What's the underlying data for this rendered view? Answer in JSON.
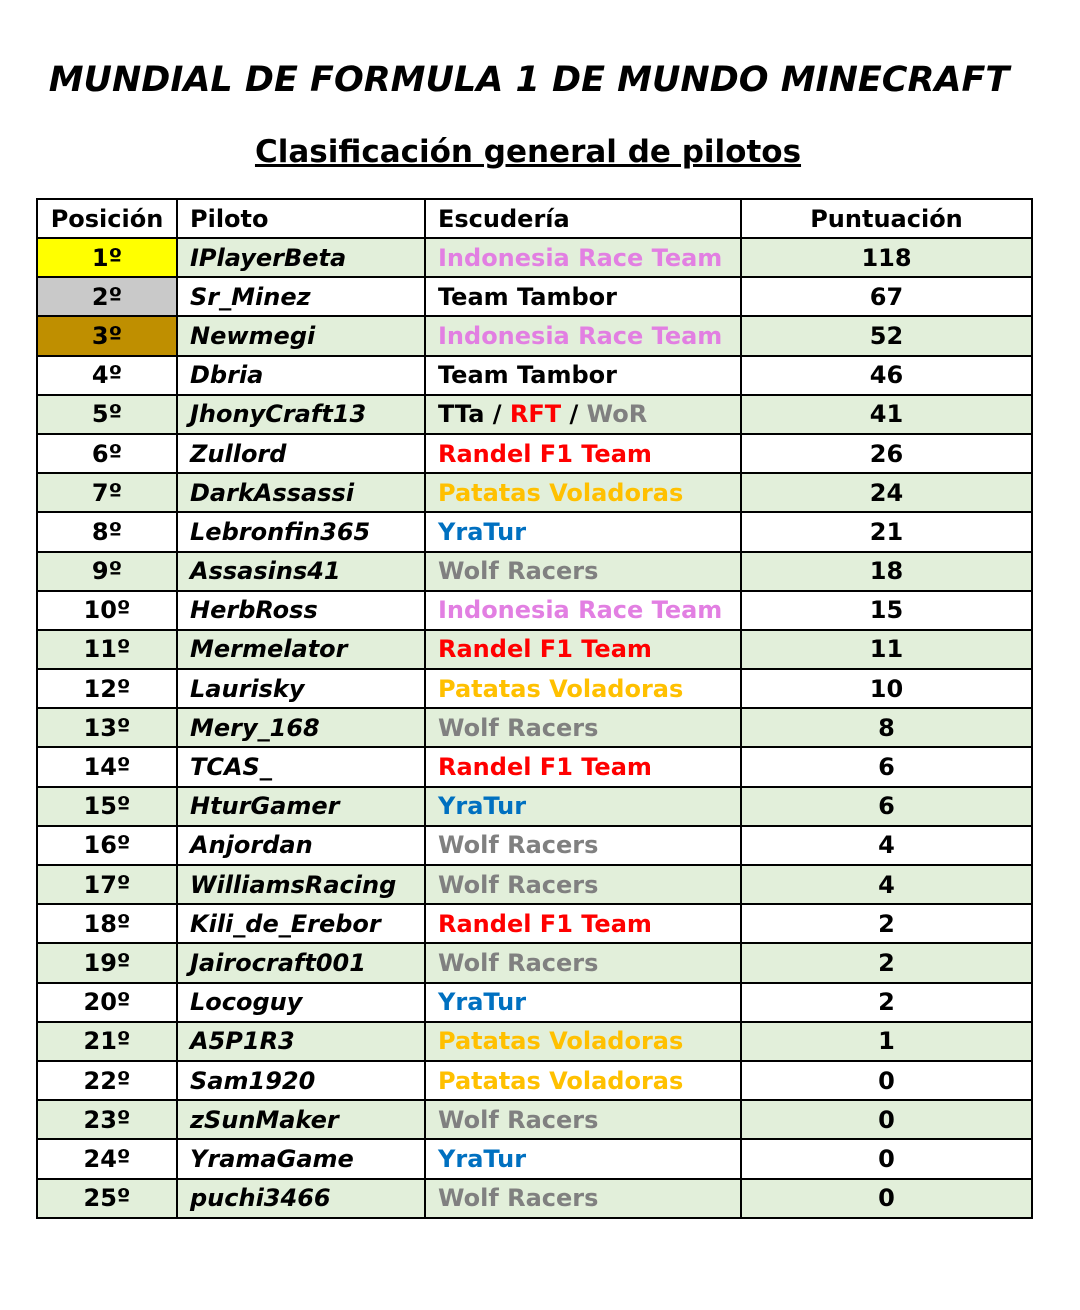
{
  "title": "MUNDIAL DE FORMULA 1 DE MUNDO MINECRAFT",
  "subtitle": "Clasificación general de pilotos",
  "colors": {
    "row_alt": "#e2efda",
    "gold": "#ffff00",
    "silver": "#c9c9c9",
    "bronze": "#bf8f00",
    "Indonesia Race Team": "#e27fe2",
    "Team Tambor": "#000000",
    "Randel F1 Team": "#ff0000",
    "Patatas Voladoras": "#ffc000",
    "YraTur": "#0070c0",
    "Wolf Racers": "#808080",
    "TTa": "#000000",
    "RFT": "#ff0000",
    "WoR": "#808080",
    "/": "#000000"
  },
  "headers": [
    "Posición",
    "Piloto",
    "Escudería",
    "Puntuación"
  ],
  "rows": [
    {
      "pos": "1º",
      "driver": "IPlayerBeta",
      "team": [
        "Indonesia Race Team"
      ],
      "points": "118"
    },
    {
      "pos": "2º",
      "driver": "Sr_Minez",
      "team": [
        "Team Tambor"
      ],
      "points": "67"
    },
    {
      "pos": "3º",
      "driver": "Newmegi",
      "team": [
        "Indonesia Race Team"
      ],
      "points": "52"
    },
    {
      "pos": "4º",
      "driver": "Dbria",
      "team": [
        "Team Tambor"
      ],
      "points": "46"
    },
    {
      "pos": "5º",
      "driver": "JhonyCraft13",
      "team": [
        "TTa",
        " / ",
        "RFT",
        " / ",
        "WoR"
      ],
      "points": "41"
    },
    {
      "pos": "6º",
      "driver": "Zullord",
      "team": [
        "Randel F1 Team"
      ],
      "points": "26"
    },
    {
      "pos": "7º",
      "driver": "DarkAssassi",
      "team": [
        "Patatas Voladoras"
      ],
      "points": "24"
    },
    {
      "pos": "8º",
      "driver": "Lebronfin365",
      "team": [
        "YraTur"
      ],
      "points": "21"
    },
    {
      "pos": "9º",
      "driver": "Assasins41",
      "team": [
        "Wolf Racers"
      ],
      "points": "18"
    },
    {
      "pos": "10º",
      "driver": "HerbRoss",
      "team": [
        "Indonesia Race Team"
      ],
      "points": "15"
    },
    {
      "pos": "11º",
      "driver": "Mermelator",
      "team": [
        "Randel F1 Team"
      ],
      "points": "11"
    },
    {
      "pos": "12º",
      "driver": "Laurisky",
      "team": [
        "Patatas Voladoras"
      ],
      "points": "10"
    },
    {
      "pos": "13º",
      "driver": "Mery_168",
      "team": [
        "Wolf Racers"
      ],
      "points": "8"
    },
    {
      "pos": "14º",
      "driver": "TCAS_",
      "team": [
        "Randel F1 Team"
      ],
      "points": "6"
    },
    {
      "pos": "15º",
      "driver": "HturGamer",
      "team": [
        "YraTur"
      ],
      "points": "6"
    },
    {
      "pos": "16º",
      "driver": "Anjordan",
      "team": [
        "Wolf Racers"
      ],
      "points": "4"
    },
    {
      "pos": "17º",
      "driver": "WilliamsRacing",
      "team": [
        "Wolf Racers"
      ],
      "points": "4"
    },
    {
      "pos": "18º",
      "driver": "Kili_de_Erebor",
      "team": [
        "Randel F1 Team"
      ],
      "points": "2"
    },
    {
      "pos": "19º",
      "driver": "Jairocraft001",
      "team": [
        "Wolf Racers"
      ],
      "points": "2"
    },
    {
      "pos": "20º",
      "driver": "Locoguy",
      "team": [
        "YraTur"
      ],
      "points": "2"
    },
    {
      "pos": "21º",
      "driver": "A5P1R3",
      "team": [
        "Patatas Voladoras"
      ],
      "points": "1"
    },
    {
      "pos": "22º",
      "driver": "Sam1920",
      "team": [
        "Patatas Voladoras"
      ],
      "points": "0"
    },
    {
      "pos": "23º",
      "driver": "zSunMaker",
      "team": [
        "Wolf Racers"
      ],
      "points": "0"
    },
    {
      "pos": "24º",
      "driver": "YramaGame",
      "team": [
        "YraTur"
      ],
      "points": "0"
    },
    {
      "pos": "25º",
      "driver": "puchi3466",
      "team": [
        "Wolf Racers"
      ],
      "points": "0"
    }
  ]
}
